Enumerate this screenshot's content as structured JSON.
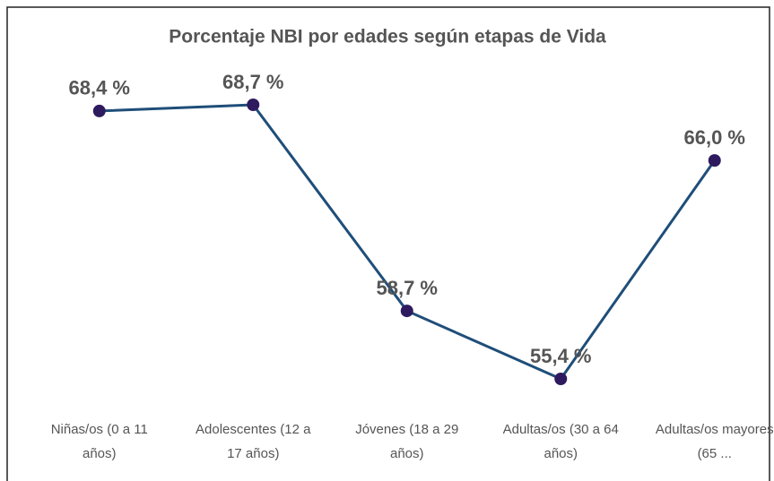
{
  "chart_data": {
    "type": "line",
    "title": "Porcentaje NBI por edades según etapas de Vida",
    "categories": [
      "Niñas/os (0 a 11 años)",
      "Adolescentes (12 a 17 años)",
      "Jóvenes (18 a 29 años)",
      "Adultas/os (30 a 64 años)",
      "Adultas/os mayores (65 ..."
    ],
    "series": [
      {
        "color": "#1f4e79",
        "values": [
          68.4,
          68.7,
          58.7,
          55.4,
          66.0
        ],
        "value_labels": [
          "68,4 %",
          "68,7 %",
          "58,7 %",
          "55,4 %",
          "66,0 %"
        ]
      }
    ],
    "marker_color": "#2e1a5e"
  }
}
